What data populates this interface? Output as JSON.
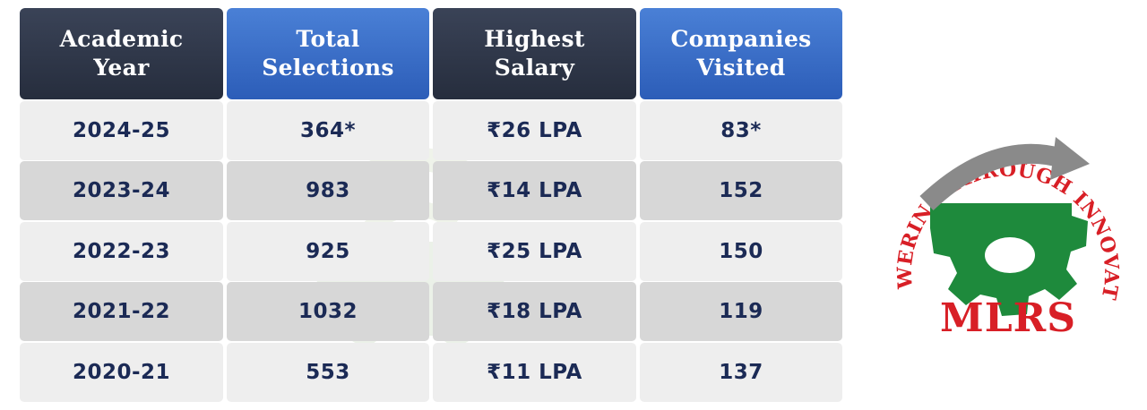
{
  "table": {
    "headers": [
      {
        "label": "Academic\nYear",
        "style": "dark"
      },
      {
        "label": "Total\nSelections",
        "style": "blue"
      },
      {
        "label": "Highest\nSalary",
        "style": "dark"
      },
      {
        "label": "Companies\nVisited",
        "style": "blue"
      }
    ],
    "rows": [
      {
        "year": "2024-25",
        "selections": "364*",
        "salary": "₹26 LPA",
        "companies": "83*"
      },
      {
        "year": "2023-24",
        "selections": "983",
        "salary": "₹14 LPA",
        "companies": "152"
      },
      {
        "year": "2022-23",
        "selections": "925",
        "salary": "₹25 LPA",
        "companies": "150"
      },
      {
        "year": "2021-22",
        "selections": "1032",
        "salary": "₹18 LPA",
        "companies": "119"
      },
      {
        "year": "2020-21",
        "selections": "553",
        "salary": "₹11 LPA",
        "companies": "137"
      }
    ]
  },
  "logo": {
    "arc_text": "EMPOWERING THROUGH INNOVATIONS",
    "name": "MLRS",
    "colors": {
      "red": "#d81f26",
      "green": "#1e8a3c",
      "grey": "#8a8a8a"
    }
  },
  "colors": {
    "header_dark": "#2e3547",
    "header_blue": "#3b6fcf",
    "cell_text": "#1b2a55",
    "row_light": "#eeeeee",
    "row_dark": "#d7d7d7"
  }
}
